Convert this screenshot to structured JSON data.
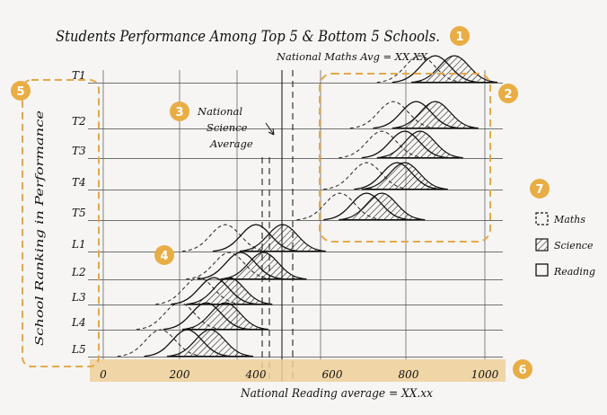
{
  "title": "Students Performance Among Top 5 & Bottom 5 Schools.",
  "y_axis_label": "School Ranking in Performance",
  "x_axis_label": "National Reading average = XX.xx",
  "annotations": {
    "maths_avg": "National Maths Avg = XX.XX",
    "science_avg": [
      "National",
      "Science",
      "Average"
    ]
  },
  "legend": [
    {
      "label": "Maths",
      "style": "dashed"
    },
    {
      "label": "Science",
      "style": "hatched"
    },
    {
      "label": "Reading",
      "style": "solid"
    }
  ],
  "badges": [
    "1",
    "2",
    "3",
    "4",
    "5",
    "6",
    "7"
  ],
  "colors": {
    "badge": "#e9ad45",
    "highlight": "#efcf98",
    "dash_box": "#e3a84a",
    "ink": "#111111"
  },
  "chart_data": {
    "type": "ridgeline",
    "xlim": [
      0,
      1000
    ],
    "ticks": [
      "0",
      "200",
      "400",
      "600",
      "800",
      "1000"
    ],
    "tick_values": [
      0,
      200,
      400,
      600,
      800,
      1000
    ],
    "rows": [
      {
        "label": "T1",
        "maths": 830,
        "science": 920,
        "reading": 870
      },
      {
        "label": "T2",
        "maths": 760,
        "science": 870,
        "reading": 820
      },
      {
        "label": "T3",
        "maths": 730,
        "science": 830,
        "reading": 790
      },
      {
        "label": "T4",
        "maths": 690,
        "science": 790,
        "reading": 770
      },
      {
        "label": "T5",
        "maths": 620,
        "science": 730,
        "reading": 690
      },
      {
        "label": "L1",
        "maths": 320,
        "science": 470,
        "reading": 400
      },
      {
        "label": "L2",
        "maths": 330,
        "science": 420,
        "reading": 360
      },
      {
        "label": "L3",
        "maths": 250,
        "science": 330,
        "reading": 290
      },
      {
        "label": "L4",
        "maths": 200,
        "science": 320,
        "reading": 270
      },
      {
        "label": "L5",
        "maths": 150,
        "science": 280,
        "reading": 220
      }
    ]
  }
}
